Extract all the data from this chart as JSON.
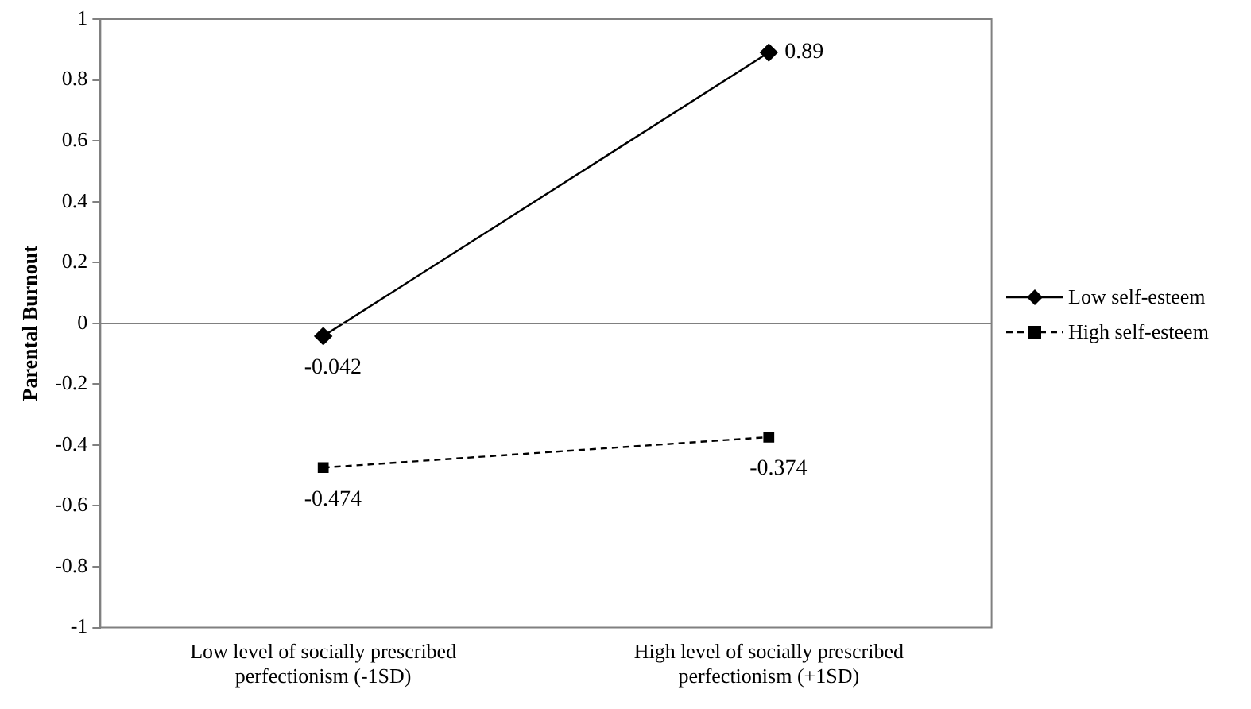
{
  "chart_data": {
    "type": "line",
    "ylabel": "Parental Burnout",
    "categories": [
      "Low level of socially prescribed perfectionism (-1SD)",
      "High level of socially prescribed perfectionism (+1SD)"
    ],
    "series": [
      {
        "name": "Low self-esteem",
        "color": "#000000",
        "values": [
          -0.042,
          0.89
        ],
        "marker": "diamond",
        "line_style": "solid"
      },
      {
        "name": "High self-esteem",
        "color": "#000000",
        "values": [
          -0.474,
          -0.374
        ],
        "marker": "square",
        "line_style": "dashed"
      }
    ],
    "ylim": [
      -1,
      1
    ],
    "yticks": [
      -1,
      -0.8,
      -0.6,
      -0.4,
      -0.2,
      0,
      0.2,
      0.4,
      0.6,
      0.8,
      1
    ],
    "legend": "right",
    "data_labels": true
  }
}
